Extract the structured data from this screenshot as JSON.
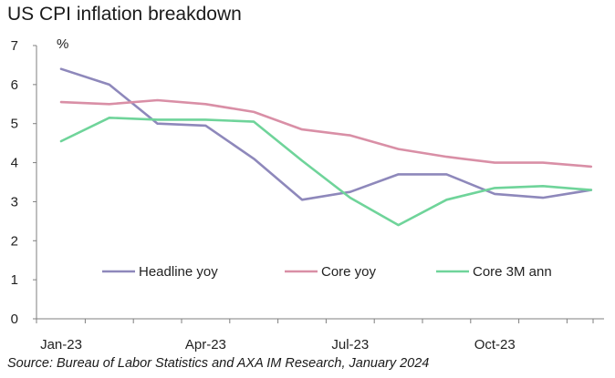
{
  "title": "US CPI inflation breakdown",
  "source": "Source: Bureau of Labor Statistics and AXA IM Research, January 2024",
  "chart_data": {
    "type": "line",
    "title": "US CPI inflation breakdown",
    "unit_label": "%",
    "x": [
      "Jan-23",
      "Feb-23",
      "Mar-23",
      "Apr-23",
      "May-23",
      "Jun-23",
      "Jul-23",
      "Aug-23",
      "Sep-23",
      "Oct-23",
      "Nov-23",
      "Dec-23"
    ],
    "x_tick_labels": [
      "Jan-23",
      "Apr-23",
      "Jul-23",
      "Oct-23"
    ],
    "y_ticks": [
      0,
      1,
      2,
      3,
      4,
      5,
      6,
      7
    ],
    "ylim": [
      0,
      7
    ],
    "grid": false,
    "legend_position": "inside-bottom",
    "series": [
      {
        "name": "Headline yoy",
        "color": "#8e88bb",
        "values": [
          6.4,
          6.0,
          5.0,
          4.95,
          4.1,
          3.05,
          3.25,
          3.7,
          3.7,
          3.2,
          3.1,
          3.3
        ]
      },
      {
        "name": "Core yoy",
        "color": "#d98fa6",
        "values": [
          5.55,
          5.5,
          5.6,
          5.5,
          5.3,
          4.85,
          4.7,
          4.35,
          4.15,
          4.0,
          4.0,
          3.9
        ]
      },
      {
        "name": "Core 3M ann",
        "color": "#6fd49a",
        "values": [
          4.55,
          5.15,
          5.1,
          5.1,
          5.05,
          4.05,
          3.1,
          2.4,
          3.05,
          3.35,
          3.4,
          3.3
        ]
      }
    ]
  }
}
